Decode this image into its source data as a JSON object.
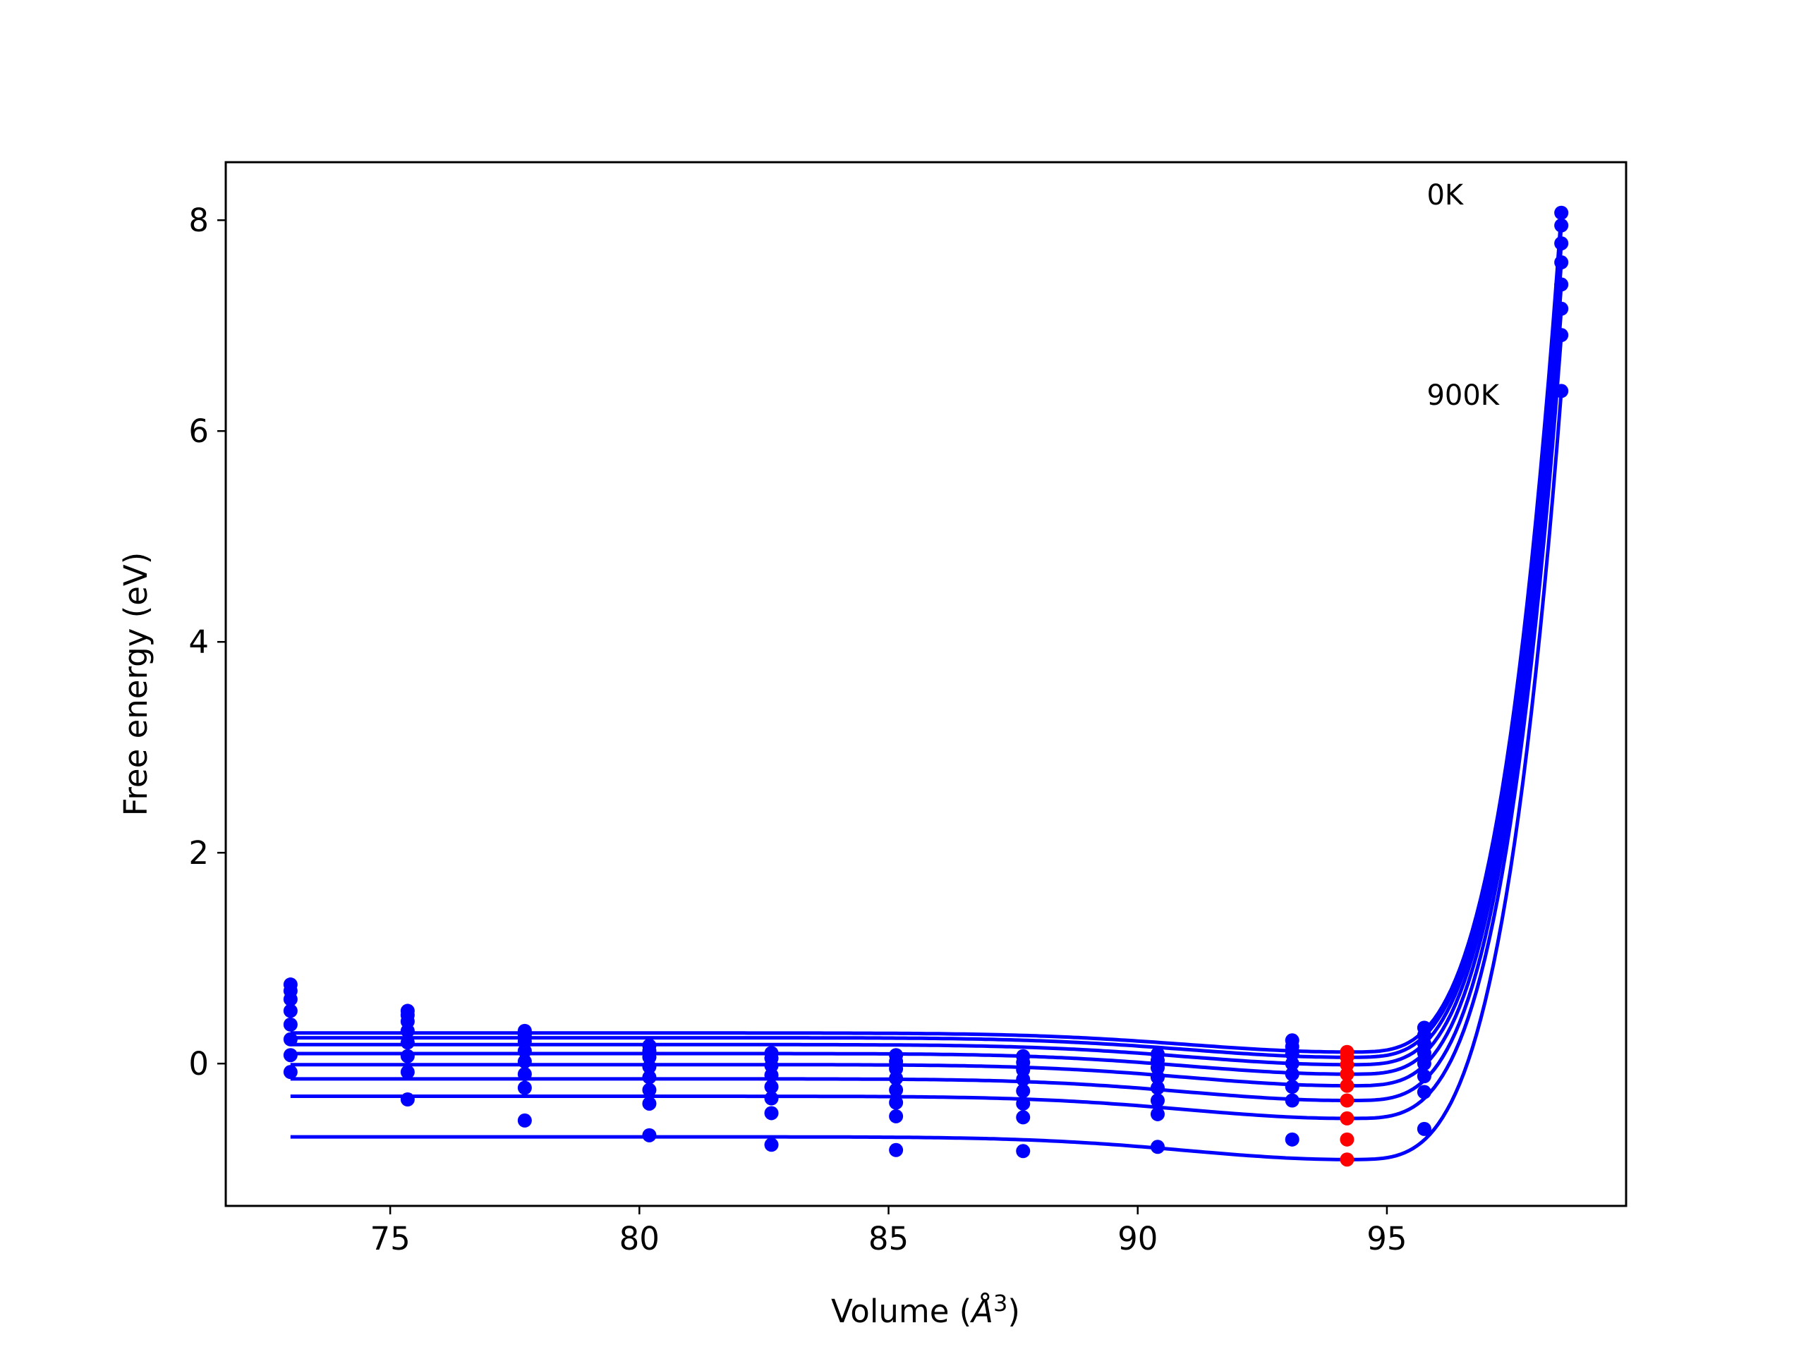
{
  "chart_data": {
    "type": "line",
    "title": "",
    "xlabel": "Volume (",
    "xlabel_symbol": "Å",
    "xlabel_exp": "3",
    "xlabel_close": ")",
    "ylabel": "Free energy (eV)",
    "xlim": [
      71.7,
      99.8
    ],
    "ylim": [
      -1.35,
      8.55
    ],
    "xticks": [
      75,
      80,
      85,
      90,
      95
    ],
    "yticks": [
      0,
      2,
      4,
      6,
      8
    ],
    "grid": false,
    "legend": "none",
    "annotations": [
      {
        "text": "0K",
        "x": 95.8,
        "y": 8.15
      },
      {
        "text": "900K",
        "x": 95.8,
        "y": 6.25
      }
    ],
    "colors": {
      "curves": "#0000ff",
      "points": "#0000ff",
      "minima": "#ff0000"
    },
    "series": [
      {
        "temperature_index": 0,
        "points": [
          [
            73.0,
            0.75
          ],
          [
            75.35,
            0.5
          ],
          [
            77.7,
            0.31
          ],
          [
            80.2,
            0.17
          ],
          [
            82.65,
            0.1
          ],
          [
            85.15,
            0.08
          ],
          [
            87.7,
            0.07
          ],
          [
            90.4,
            0.09
          ],
          [
            93.1,
            0.22
          ],
          [
            95.75,
            0.34
          ],
          [
            98.5,
            8.07
          ]
        ],
        "min": [
          94.2,
          0.11
        ]
      },
      {
        "temperature_index": 1,
        "points": [
          [
            73.0,
            0.69
          ],
          [
            75.35,
            0.46
          ],
          [
            77.7,
            0.27
          ],
          [
            80.2,
            0.12
          ],
          [
            82.65,
            0.05
          ],
          [
            85.15,
            0.02
          ],
          [
            87.7,
            0.01
          ],
          [
            90.4,
            0.03
          ],
          [
            93.1,
            0.16
          ],
          [
            95.75,
            0.27
          ],
          [
            98.5,
            7.95
          ]
        ],
        "min": [
          94.2,
          0.06
        ]
      },
      {
        "temperature_index": 2,
        "points": [
          [
            73.0,
            0.61
          ],
          [
            75.35,
            0.4
          ],
          [
            77.7,
            0.21
          ],
          [
            80.2,
            0.06
          ],
          [
            82.65,
            -0.02
          ],
          [
            85.15,
            -0.05
          ],
          [
            87.7,
            -0.06
          ],
          [
            90.4,
            -0.04
          ],
          [
            93.1,
            0.09
          ],
          [
            95.75,
            0.19
          ],
          [
            98.5,
            7.78
          ]
        ],
        "min": [
          94.2,
          -0.01
        ]
      },
      {
        "temperature_index": 3,
        "points": [
          [
            73.0,
            0.5
          ],
          [
            75.35,
            0.31
          ],
          [
            77.7,
            0.12
          ],
          [
            80.2,
            -0.03
          ],
          [
            82.65,
            -0.11
          ],
          [
            85.15,
            -0.14
          ],
          [
            87.7,
            -0.15
          ],
          [
            90.4,
            -0.13
          ],
          [
            93.1,
            0.0
          ],
          [
            95.75,
            0.1
          ],
          [
            98.5,
            7.6
          ]
        ],
        "min": [
          94.2,
          -0.1
        ]
      },
      {
        "temperature_index": 4,
        "points": [
          [
            73.0,
            0.37
          ],
          [
            75.35,
            0.2
          ],
          [
            77.7,
            0.02
          ],
          [
            80.2,
            -0.13
          ],
          [
            82.65,
            -0.22
          ],
          [
            85.15,
            -0.25
          ],
          [
            87.7,
            -0.26
          ],
          [
            90.4,
            -0.23
          ],
          [
            93.1,
            -0.1
          ],
          [
            95.75,
            0.0
          ],
          [
            98.5,
            7.39
          ]
        ],
        "min": [
          94.2,
          -0.21
        ]
      },
      {
        "temperature_index": 5,
        "points": [
          [
            73.0,
            0.23
          ],
          [
            75.35,
            0.07
          ],
          [
            77.7,
            -0.1
          ],
          [
            80.2,
            -0.25
          ],
          [
            82.65,
            -0.33
          ],
          [
            85.15,
            -0.37
          ],
          [
            87.7,
            -0.38
          ],
          [
            90.4,
            -0.35
          ],
          [
            93.1,
            -0.22
          ],
          [
            95.75,
            -0.12
          ],
          [
            98.5,
            7.16
          ]
        ],
        "min": [
          94.2,
          -0.35
        ]
      },
      {
        "temperature_index": 6,
        "points": [
          [
            73.0,
            0.08
          ],
          [
            75.35,
            -0.08
          ],
          [
            77.7,
            -0.23
          ],
          [
            80.2,
            -0.38
          ],
          [
            82.65,
            -0.47
          ],
          [
            85.15,
            -0.5
          ],
          [
            87.7,
            -0.51
          ],
          [
            90.4,
            -0.48
          ],
          [
            93.1,
            -0.35
          ],
          [
            95.75,
            -0.27
          ],
          [
            98.5,
            6.91
          ]
        ],
        "min": [
          94.2,
          -0.52
        ]
      },
      {
        "temperature_index": 7,
        "points": [
          [
            73.0,
            -0.08
          ],
          [
            75.35,
            -0.34
          ],
          [
            77.7,
            -0.54
          ],
          [
            80.2,
            -0.68
          ],
          [
            82.65,
            -0.77
          ],
          [
            85.15,
            -0.82
          ],
          [
            87.7,
            -0.83
          ],
          [
            90.4,
            -0.79
          ],
          [
            93.1,
            -0.72
          ],
          [
            95.75,
            -0.62
          ],
          [
            98.5,
            6.38
          ]
        ],
        "min": [
          94.2,
          -0.91
        ]
      }
    ],
    "extra_minima": [
      [
        94.2,
        -0.72
      ]
    ]
  }
}
